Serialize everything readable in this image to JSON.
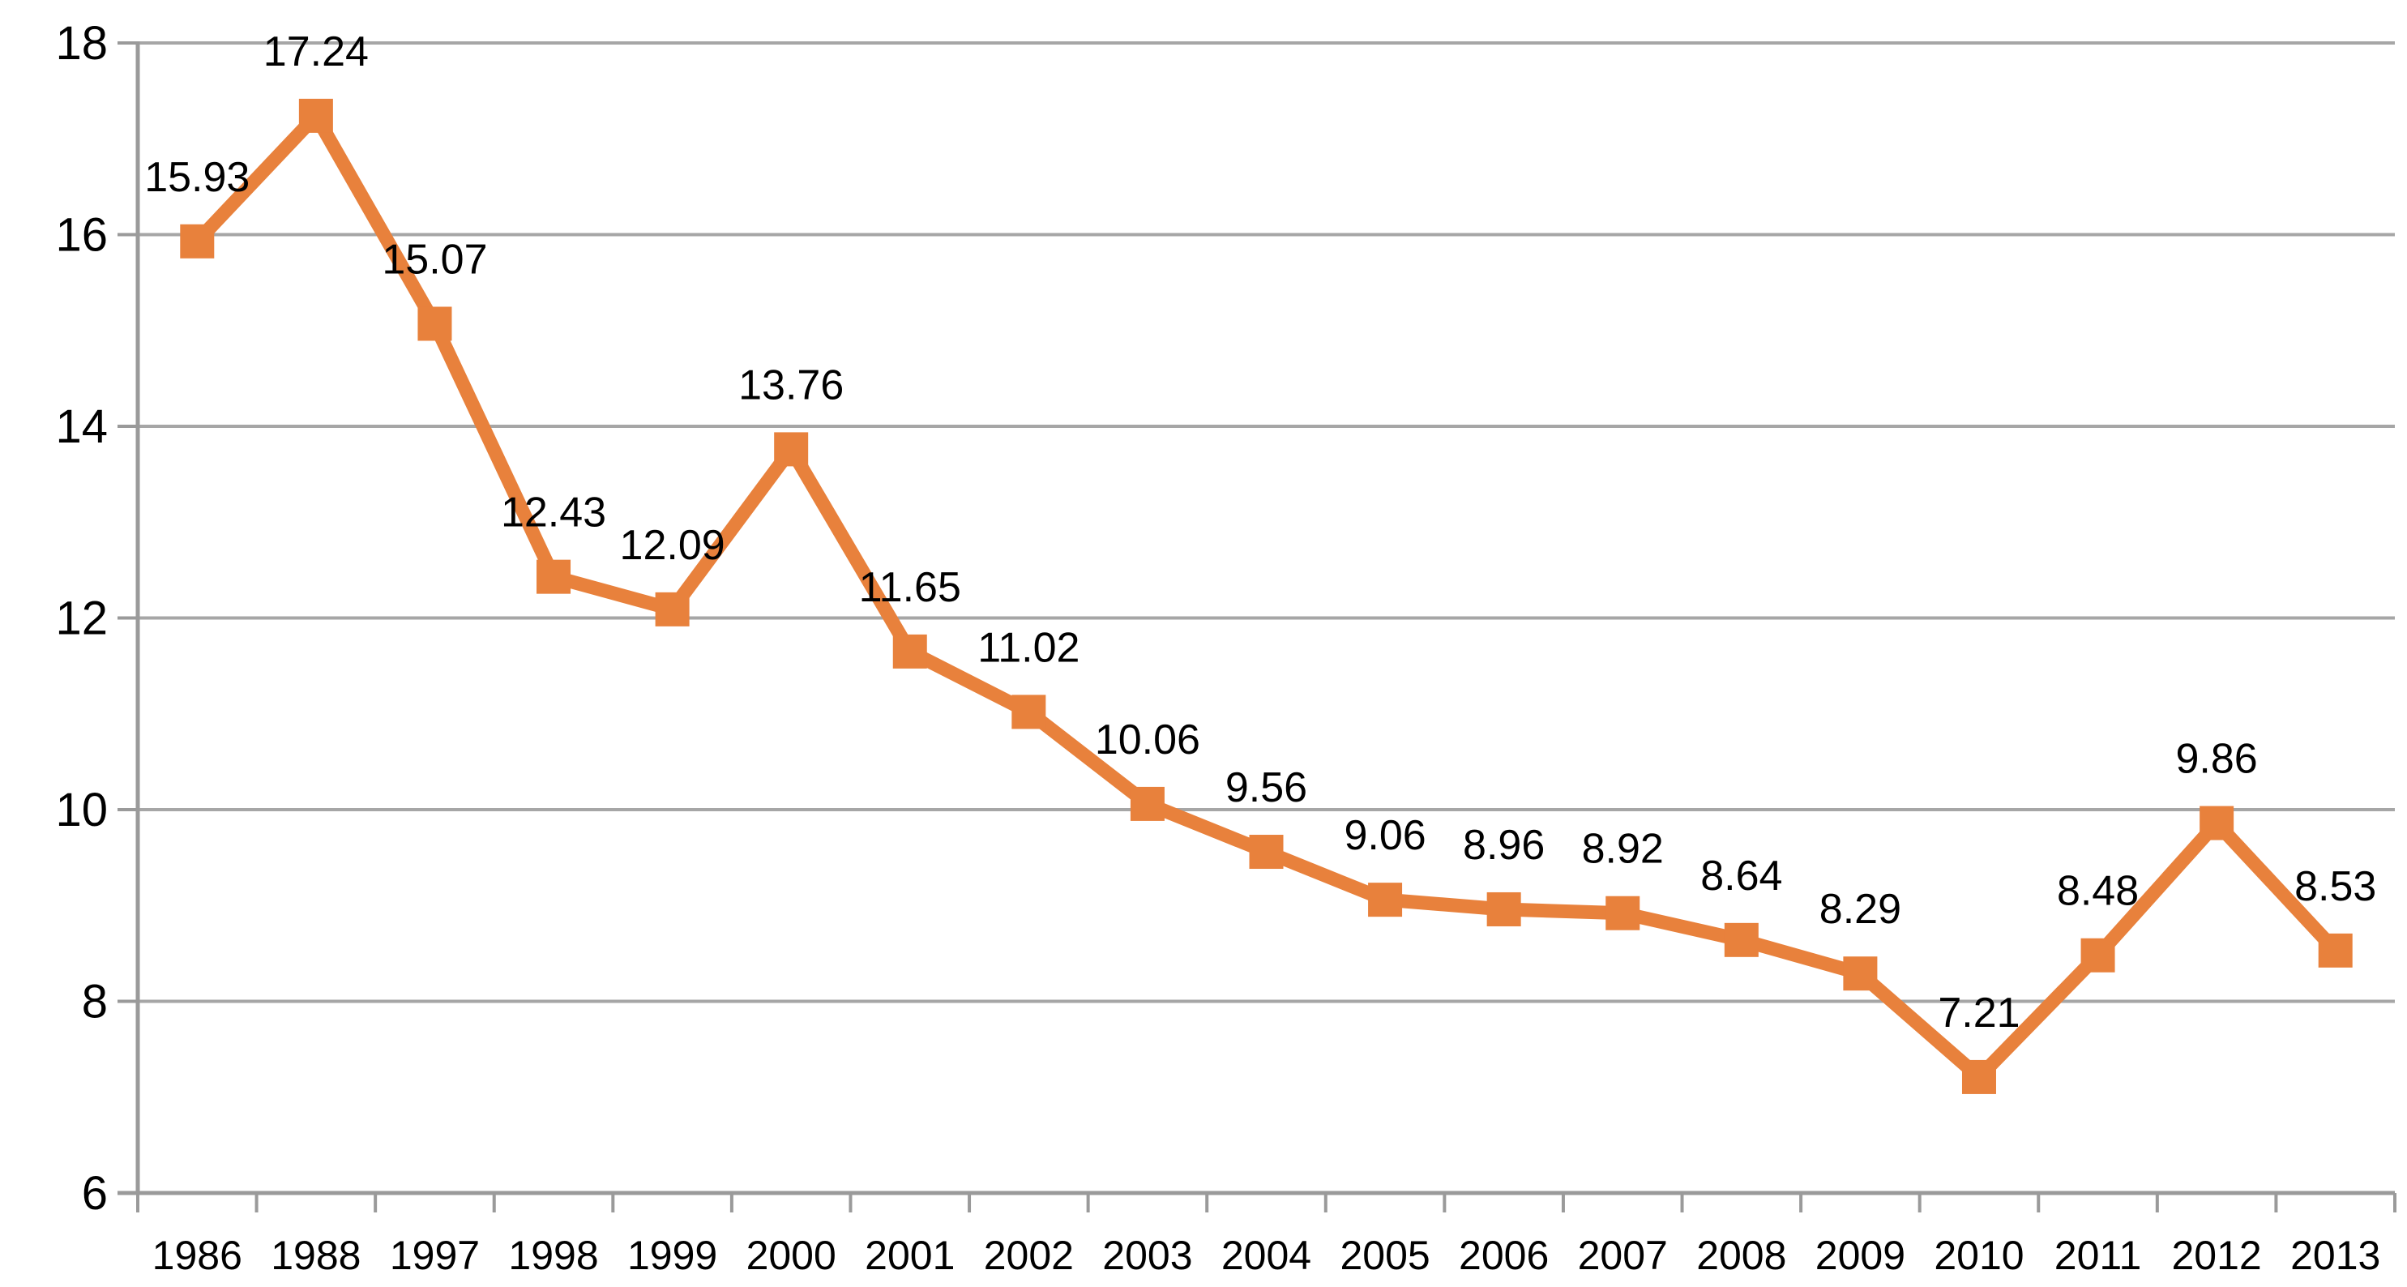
{
  "chart_data": {
    "type": "line",
    "title": "",
    "xlabel": "",
    "ylabel": "",
    "categories": [
      "1986",
      "1988",
      "1997",
      "1998",
      "1999",
      "2000",
      "2001",
      "2002",
      "2003",
      "2004",
      "2005",
      "2006",
      "2007",
      "2008",
      "2009",
      "2010",
      "2011",
      "2012",
      "2013"
    ],
    "series": [
      {
        "name": "",
        "values": [
          15.93,
          17.24,
          15.07,
          12.43,
          12.09,
          13.76,
          11.65,
          11.02,
          10.06,
          9.56,
          9.06,
          8.96,
          8.92,
          8.64,
          8.29,
          7.21,
          8.48,
          9.86,
          8.53
        ],
        "data_labels": [
          "15.93",
          "17.24",
          "15.07",
          "12.43",
          "12.09",
          "13.76",
          "11.65",
          "11.02",
          "10.06",
          "9.56",
          "9.06",
          "8.96",
          "8.92",
          "8.64",
          "8.29",
          "7.21",
          "8.48",
          "9.86",
          "8.53"
        ]
      }
    ],
    "ylim": [
      6,
      18
    ],
    "yticks": [
      18,
      16,
      14,
      12,
      10,
      8,
      6
    ],
    "grid": true,
    "legend_position": "none",
    "marker": "square",
    "colors": {
      "series": "#E8813C",
      "gridline": "#A6A6A6",
      "axis": "#9A9A9A",
      "text": "#000000",
      "background": "#FFFFFF"
    }
  }
}
